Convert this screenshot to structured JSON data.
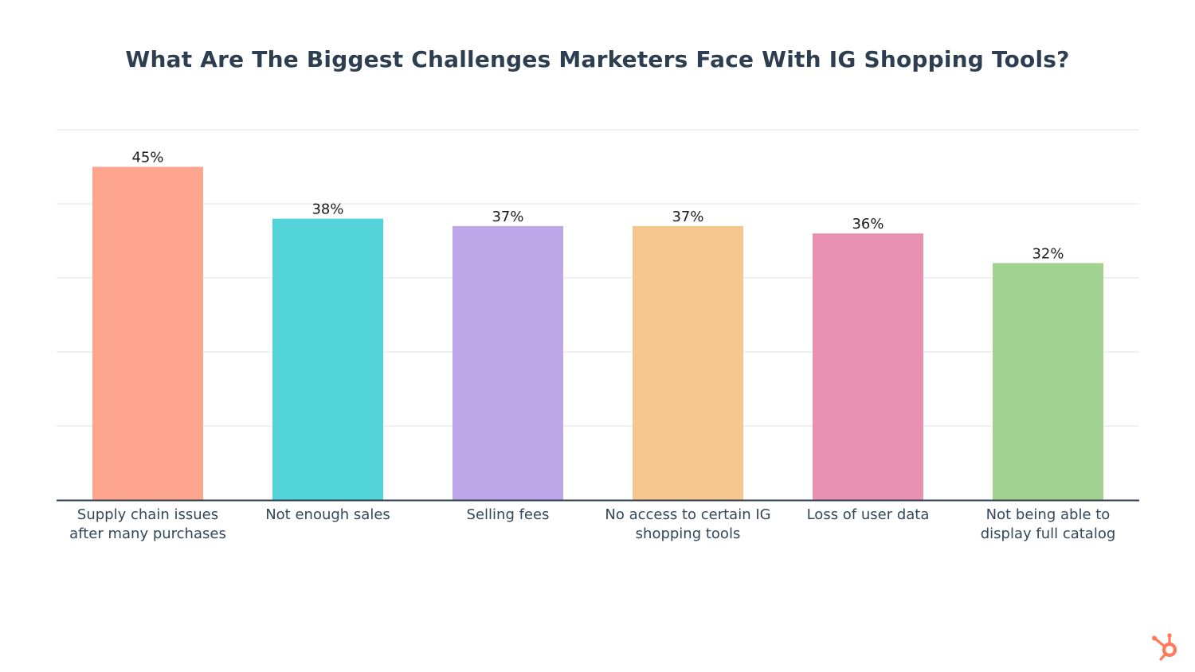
{
  "chart_data": {
    "type": "bar",
    "title": "What Are The Biggest Challenges Marketers Face With IG Shopping Tools?",
    "xlabel": "",
    "ylabel": "",
    "ylim": [
      0,
      50
    ],
    "grid": true,
    "value_suffix": "%",
    "categories": [
      [
        "Supply chain issues",
        "after many purchases"
      ],
      [
        "Not enough sales"
      ],
      [
        "Selling fees"
      ],
      [
        "No access to certain IG",
        "shopping tools"
      ],
      [
        "Loss of user data"
      ],
      [
        "Not being able to",
        "display full catalog"
      ]
    ],
    "values": [
      45,
      38,
      37,
      37,
      36,
      32
    ],
    "colors": [
      "#fea58e",
      "#51d3d9",
      "#bea7e8",
      "#f5c78e",
      "#ea90b1",
      "#a2d28f"
    ]
  },
  "brand": {
    "logo_icon": "hubspot-sprocket-icon",
    "logo_color": "#ff7a59"
  },
  "style": {
    "title_color": "#2d3e50",
    "grid_color": "#dfe3eb",
    "axis_color": "#2d3e50",
    "label_color": "#33475b"
  }
}
